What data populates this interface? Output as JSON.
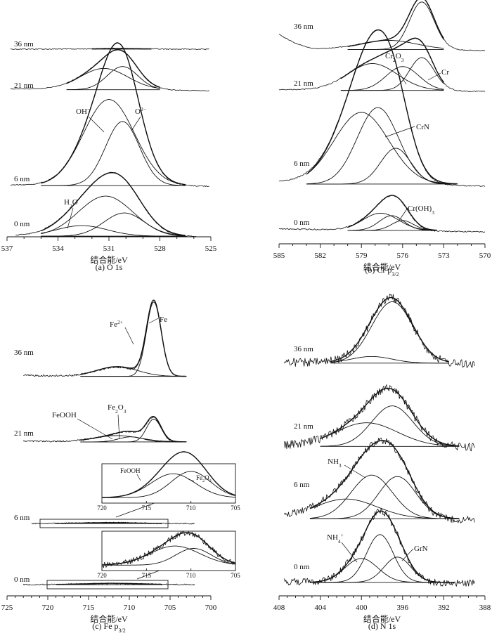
{
  "figure": {
    "panels": [
      {
        "id": "a",
        "caption": "(a) O 1s",
        "xlabel": "结合能/eV",
        "xlim": [
          537,
          525
        ],
        "ticks": [
          "537",
          "534",
          "531",
          "528",
          "525"
        ],
        "traces": [
          {
            "label": "36 nm",
            "baseline": 0.02,
            "peaks": [
              {
                "c": 530.5,
                "w": 1.4,
                "h": 0.06
              }
            ]
          },
          {
            "label": "21 nm",
            "baseline": 0.08,
            "peaks": [
              {
                "c": 531.3,
                "w": 1.4,
                "h": 0.55
              },
              {
                "c": 530.2,
                "w": 0.9,
                "h": 0.6
              }
            ]
          },
          {
            "label": "6 nm",
            "baseline": 0.05,
            "peaks": [
              {
                "c": 531.0,
                "w": 1.5,
                "h": 2.15
              },
              {
                "c": 530.2,
                "w": 1.0,
                "h": 1.6
              }
            ]
          },
          {
            "label": "0 nm",
            "baseline": 0.05,
            "peaks": [
              {
                "c": 532.6,
                "w": 1.5,
                "h": 0.25
              },
              {
                "c": 531.2,
                "w": 1.6,
                "h": 0.95
              },
              {
                "c": 530.1,
                "w": 1.2,
                "h": 0.55
              }
            ]
          }
        ],
        "annotations": [
          {
            "main": "OH",
            "sup": "−",
            "trace": 2
          },
          {
            "main": "O",
            "sup": "2−",
            "trace": 2
          },
          {
            "main": "H",
            "sub": "2",
            "rest": "O",
            "trace": 3
          }
        ]
      },
      {
        "id": "b",
        "caption": "(b) Cr p",
        "caption_sub": "3/2",
        "xlabel": "结合能/eV",
        "xlim": [
          585,
          570
        ],
        "ticks": [
          "585",
          "582",
          "579",
          "576",
          "573",
          "570"
        ],
        "traces": [
          {
            "label": "36 nm",
            "baseline": 0.1,
            "peaks": [
              {
                "c": 577.0,
                "w": 2.0,
                "h": 0.25
              },
              {
                "c": 574.6,
                "w": 0.9,
                "h": 1.3
              }
            ]
          },
          {
            "label": "21 nm",
            "baseline": 0.05,
            "peaks": [
              {
                "c": 578.2,
                "w": 1.8,
                "h": 0.45
              },
              {
                "c": 576.0,
                "w": 1.2,
                "h": 0.4
              },
              {
                "c": 574.6,
                "w": 0.9,
                "h": 0.55
              }
            ]
          },
          {
            "label": "6 nm",
            "baseline": 0.15,
            "peaks": [
              {
                "c": 579.0,
                "w": 2.0,
                "h": 1.5
              },
              {
                "c": 577.8,
                "w": 1.5,
                "h": 1.6
              },
              {
                "c": 576.5,
                "w": 1.1,
                "h": 0.75
              }
            ]
          },
          {
            "label": "0 nm",
            "baseline": 0.1,
            "peaks": [
              {
                "c": 577.6,
                "w": 1.3,
                "h": 0.35
              },
              {
                "c": 576.8,
                "w": 0.9,
                "h": 0.3
              },
              {
                "c": 576.0,
                "w": 0.8,
                "h": 0.2
              }
            ]
          }
        ],
        "annotations": [
          {
            "main": "Cr",
            "sub": "2",
            "rest": "O",
            "sub2": "3",
            "trace": 1
          },
          {
            "main": "Cr",
            "trace": 1
          },
          {
            "main": "CrN",
            "trace": 2
          },
          {
            "main": "Cr(OH)",
            "sub": "3",
            "trace": 3
          }
        ]
      },
      {
        "id": "c",
        "caption": "(c) Fe p",
        "caption_sub": "3/2",
        "xlabel": "结合能/eV",
        "xlim": [
          725,
          700
        ],
        "ticks": [
          "725",
          "720",
          "715",
          "710",
          "705",
          "700"
        ],
        "traces": [
          {
            "label": "36 nm",
            "baseline": 0.1,
            "peaks": [
              {
                "c": 711.5,
                "w": 2.5,
                "h": 0.3
              },
              {
                "c": 707.0,
                "w": 0.9,
                "h": 2.3
              }
            ]
          },
          {
            "label": "21 nm",
            "baseline": 0.1,
            "peaks": [
              {
                "c": 711.5,
                "w": 2.8,
                "h": 0.25
              },
              {
                "c": 709.8,
                "w": 1.5,
                "h": 0.2
              },
              {
                "c": 707.0,
                "w": 0.9,
                "h": 0.9
              }
            ]
          },
          {
            "label": "6 nm",
            "baseline": 0.0,
            "peaks": [
              {
                "c": 712.5,
                "w": 3.0,
                "h": 0.02
              }
            ]
          },
          {
            "label": "0 nm",
            "baseline": 0.0,
            "peaks": [
              {
                "c": 712.0,
                "w": 3.5,
                "h": 0.03
              }
            ]
          }
        ],
        "annotations": [
          {
            "main": "Fe",
            "sup": "2+",
            "trace": 0
          },
          {
            "main": "Fe",
            "trace": 0
          },
          {
            "main": "FeOOH",
            "trace": 1
          },
          {
            "main": "Fe",
            "sub": "2",
            "rest": "O",
            "sub2": "3",
            "trace": 1
          }
        ],
        "insets": [
          {
            "xlim": [
              720,
              705
            ],
            "ticks": [
              "720",
              "715",
              "710",
              "705"
            ],
            "noisy": false,
            "peaks": [
              {
                "c": 712.0,
                "w": 2.5,
                "h": 1.0
              },
              {
                "c": 710.0,
                "w": 2.2,
                "h": 1.1
              }
            ],
            "labels": [
              {
                "main": "FeOOH"
              },
              {
                "main": "Fe",
                "sub": "2",
                "rest": "O",
                "sub2": "3"
              }
            ]
          },
          {
            "xlim": [
              720,
              705
            ],
            "ticks": [
              "720",
              "715",
              "710",
              "705"
            ],
            "noisy": true,
            "peaks": [
              {
                "c": 711.8,
                "w": 2.8,
                "h": 0.8
              },
              {
                "c": 709.7,
                "w": 2.0,
                "h": 0.7
              }
            ],
            "labels": []
          }
        ]
      },
      {
        "id": "d",
        "caption": "(d) N 1s",
        "xlabel": "结合能/eV",
        "xlim": [
          408,
          388
        ],
        "ticks": [
          "408",
          "404",
          "400",
          "396",
          "392",
          "388"
        ],
        "traces": [
          {
            "label": "36 nm",
            "baseline": 0.1,
            "peaks": [
              {
                "c": 399.0,
                "w": 2.0,
                "h": 0.25
              },
              {
                "c": 397.0,
                "w": 2.0,
                "h": 2.3
              }
            ]
          },
          {
            "label": "21 nm",
            "baseline": 0.05,
            "peaks": [
              {
                "c": 399.5,
                "w": 3.0,
                "h": 0.7
              },
              {
                "c": 397.0,
                "w": 2.0,
                "h": 1.2
              }
            ]
          },
          {
            "label": "6 nm",
            "baseline": 0.15,
            "peaks": [
              {
                "c": 401.5,
                "w": 3.0,
                "h": 0.7
              },
              {
                "c": 399.0,
                "w": 2.0,
                "h": 1.55
              },
              {
                "c": 396.5,
                "w": 1.8,
                "h": 1.5
              }
            ]
          },
          {
            "label": "0 nm",
            "baseline": 0.1,
            "peaks": [
              {
                "c": 400.0,
                "w": 1.6,
                "h": 0.85
              },
              {
                "c": 398.2,
                "w": 1.3,
                "h": 1.7
              },
              {
                "c": 396.5,
                "w": 1.3,
                "h": 0.9
              }
            ]
          }
        ],
        "annotations": [
          {
            "main": "NH",
            "sub": "3",
            "trace": 2
          },
          {
            "main": "NH",
            "sub": "4",
            "sup": "+",
            "trace": 3
          },
          {
            "main": "GrN",
            "trace": 3
          }
        ]
      }
    ]
  },
  "chart_data": [
    {
      "type": "line",
      "title": "(a) O 1s",
      "xlabel": "结合能/eV",
      "ylabel": "",
      "xlim": [
        537,
        525
      ],
      "x_ticks": [
        537,
        534,
        531,
        528,
        525
      ],
      "grid": false,
      "series": [
        {
          "name": "36 nm",
          "components_eV": [
            530.5
          ]
        },
        {
          "name": "21 nm",
          "components_eV": [
            531.3,
            530.2
          ]
        },
        {
          "name": "6 nm",
          "components_eV": [
            531.0,
            530.2
          ],
          "labels": [
            "OH−",
            "O2−"
          ]
        },
        {
          "name": "0 nm",
          "components_eV": [
            532.6,
            531.2,
            530.1
          ],
          "labels": [
            "H2O",
            "",
            ""
          ]
        }
      ]
    },
    {
      "type": "line",
      "title": "(b) Cr p3/2",
      "xlabel": "结合能/eV",
      "ylabel": "",
      "xlim": [
        585,
        570
      ],
      "x_ticks": [
        585,
        582,
        579,
        576,
        573,
        570
      ],
      "grid": false,
      "series": [
        {
          "name": "36 nm",
          "components_eV": [
            577.0,
            574.6
          ]
        },
        {
          "name": "21 nm",
          "components_eV": [
            578.2,
            576.0,
            574.6
          ],
          "labels": [
            "",
            "Cr2O3",
            "Cr"
          ]
        },
        {
          "name": "6 nm",
          "components_eV": [
            579.0,
            577.8,
            576.5
          ],
          "labels": [
            "",
            "CrN",
            ""
          ]
        },
        {
          "name": "0 nm",
          "components_eV": [
            577.6,
            576.8,
            576.0
          ],
          "labels": [
            "",
            "Cr(OH)3",
            ""
          ]
        }
      ]
    },
    {
      "type": "line",
      "title": "(c) Fe p3/2",
      "xlabel": "结合能/eV",
      "ylabel": "",
      "xlim": [
        725,
        700
      ],
      "x_ticks": [
        725,
        720,
        715,
        710,
        705,
        700
      ],
      "grid": false,
      "series": [
        {
          "name": "36 nm",
          "components_eV": [
            711.5,
            707.0
          ],
          "labels": [
            "Fe2+",
            "Fe"
          ]
        },
        {
          "name": "21 nm",
          "components_eV": [
            711.5,
            709.8,
            707.0
          ],
          "labels": [
            "FeOOH",
            "Fe2O3",
            ""
          ]
        },
        {
          "name": "6 nm",
          "components_eV": [
            712.0,
            710.0
          ],
          "labels": [
            "FeOOH",
            "Fe2O3"
          ]
        },
        {
          "name": "0 nm",
          "components_eV": [
            711.8,
            709.7
          ]
        }
      ]
    },
    {
      "type": "line",
      "title": "(d) N 1s",
      "xlabel": "结合能/eV",
      "ylabel": "",
      "xlim": [
        408,
        388
      ],
      "x_ticks": [
        408,
        404,
        400,
        396,
        392,
        388
      ],
      "grid": false,
      "series": [
        {
          "name": "36 nm",
          "components_eV": [
            399.0,
            397.0
          ]
        },
        {
          "name": "21 nm",
          "components_eV": [
            399.5,
            397.0
          ]
        },
        {
          "name": "6 nm",
          "components_eV": [
            401.5,
            399.0,
            396.5
          ],
          "labels": [
            "",
            "NH3",
            ""
          ]
        },
        {
          "name": "0 nm",
          "components_eV": [
            400.0,
            398.2,
            396.5
          ],
          "labels": [
            "NH4+",
            "",
            "GrN"
          ]
        }
      ]
    }
  ]
}
